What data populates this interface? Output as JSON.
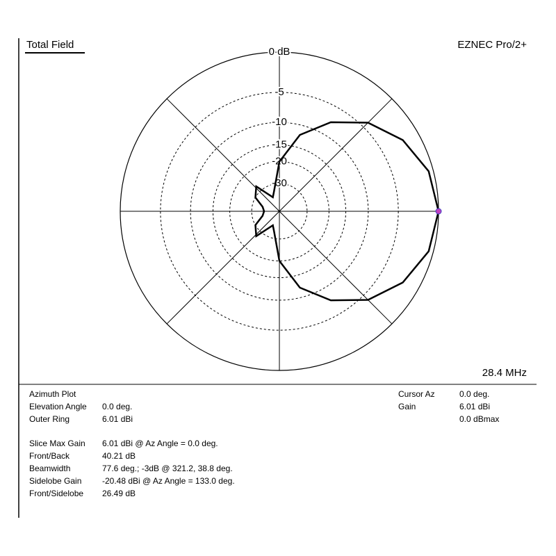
{
  "chart_data": {
    "type": "polar",
    "title": "Total Field",
    "program": "EZNEC Pro/2+",
    "frequency": "28.4 MHz",
    "scale": "arrl-log",
    "color": "#000000",
    "cursor_color": "#c040c0",
    "angles": [
      0,
      15,
      30,
      45,
      60,
      75,
      90,
      105,
      115,
      133,
      150,
      165,
      180,
      195,
      210,
      227,
      245,
      255,
      270,
      285,
      300,
      315,
      330,
      345,
      360
    ],
    "values": [
      0,
      -0.5,
      -1.9,
      -4.1,
      -7.5,
      -12,
      -20,
      -35,
      -40,
      -26.5,
      -30,
      -38,
      -40.2,
      -38,
      -30,
      -26.5,
      -40,
      -35,
      -20,
      -12,
      -7.5,
      -4.1,
      -1.9,
      -0.5,
      0
    ],
    "rticks": [
      {
        "value": 0,
        "label": "0 dB"
      },
      -5,
      -10,
      -15,
      -20,
      -30
    ],
    "spokes": [
      0,
      45,
      90,
      135
    ]
  },
  "info": {
    "heading": "Azimuth Plot",
    "rows": [
      [
        "Elevation Angle",
        "0.0 deg."
      ],
      [
        "Outer Ring",
        "6.01 dBi"
      ]
    ],
    "stats": [
      [
        "Slice Max Gain",
        "6.01 dBi @ Az Angle = 0.0 deg."
      ],
      [
        "Front/Back",
        "40.21 dB"
      ],
      [
        "Beamwidth",
        "77.6 deg.; -3dB @ 321.2, 38.8 deg."
      ],
      [
        "Sidelobe Gain",
        "-20.48 dBi @ Az Angle = 133.0 deg."
      ],
      [
        "Front/Sidelobe",
        "26.49 dB"
      ]
    ],
    "cursor": [
      [
        "Cursor Az",
        "0.0 deg."
      ],
      [
        "Gain",
        "6.01 dBi"
      ]
    ],
    "cursor_extra": "0.0 dBmax"
  }
}
